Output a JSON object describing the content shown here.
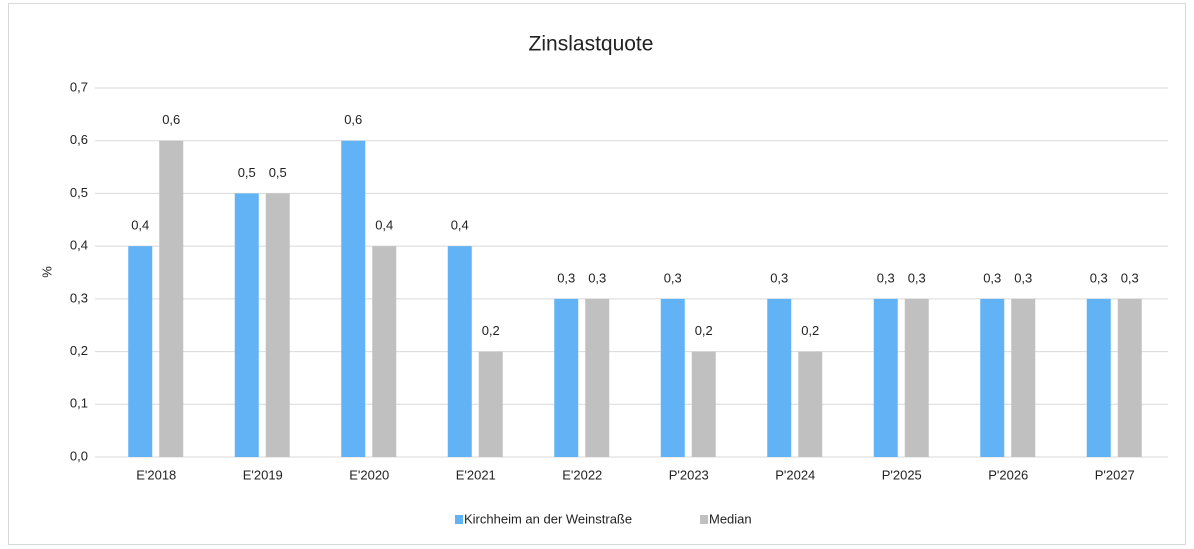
{
  "chart_data": {
    "type": "bar",
    "title": "Zinslastquote",
    "y_label": "%",
    "categories": [
      "E'2018",
      "E'2019",
      "E'2020",
      "E'2021",
      "E'2022",
      "P'2023",
      "P'2024",
      "P'2025",
      "P'2026",
      "P'2027"
    ],
    "series": [
      {
        "name": "Kirchheim an der Weinstraße",
        "color": "#62b3f5",
        "values": [
          0.4,
          0.5,
          0.6,
          0.4,
          0.3,
          0.3,
          0.3,
          0.3,
          0.3,
          0.3
        ],
        "value_labels": [
          "0,4",
          "0,5",
          "0,6",
          "0,4",
          "0,3",
          "0,3",
          "0,3",
          "0,3",
          "0,3",
          "0,3"
        ]
      },
      {
        "name": "Median",
        "color": "#c0c0c0",
        "values": [
          0.6,
          0.5,
          0.4,
          0.2,
          0.3,
          0.2,
          0.2,
          0.3,
          0.3,
          0.3
        ],
        "value_labels": [
          "0,6",
          "0,5",
          "0,4",
          "0,2",
          "0,3",
          "0,2",
          "0,2",
          "0,3",
          "0,3",
          "0,3"
        ]
      }
    ],
    "ylim": [
      0,
      0.7
    ],
    "yticks": [
      {
        "value": 0,
        "label": "0,0"
      },
      {
        "value": 0.1,
        "label": "0,1"
      },
      {
        "value": 0.2,
        "label": "0,2"
      },
      {
        "value": 0.3,
        "label": "0,3"
      },
      {
        "value": 0.4,
        "label": "0,4"
      },
      {
        "value": 0.5,
        "label": "0,5"
      },
      {
        "value": 0.6,
        "label": "0,6"
      },
      {
        "value": 0.7,
        "label": "0,7"
      }
    ],
    "grid": true,
    "legend": "bottom"
  }
}
